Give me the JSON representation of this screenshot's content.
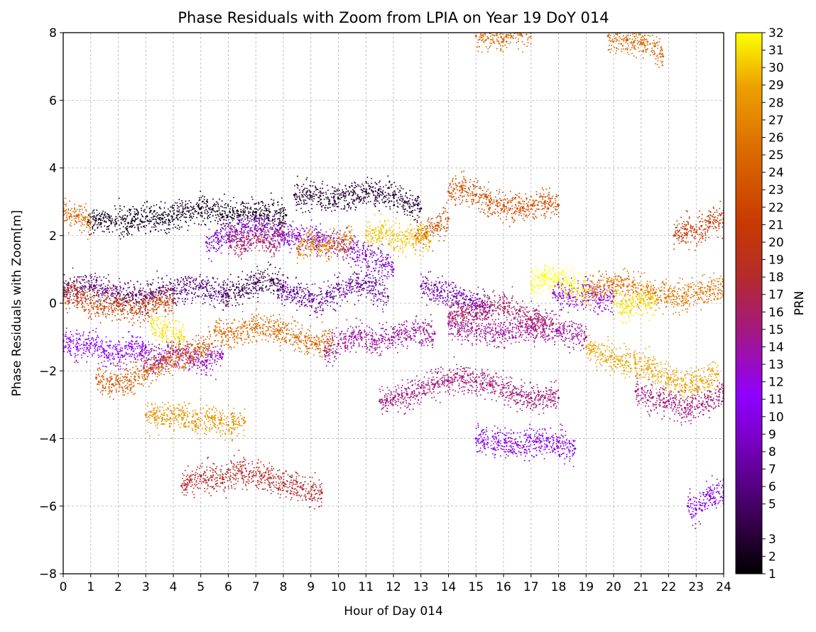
{
  "chart_data": {
    "type": "scatter",
    "title": "Phase Residuals with Zoom from LPIA on Year 19 DoY 014",
    "xlabel": "Hour of Day 014",
    "ylabel": "Phase Residuals with Zoom[m]",
    "xlim": [
      0,
      24
    ],
    "ylim": [
      -8,
      8
    ],
    "xticks": [
      "0",
      "1",
      "2",
      "3",
      "4",
      "5",
      "6",
      "7",
      "8",
      "9",
      "10",
      "11",
      "12",
      "13",
      "14",
      "15",
      "16",
      "17",
      "18",
      "19",
      "20",
      "21",
      "22",
      "23",
      "24"
    ],
    "yticks": [
      "8",
      "6",
      "4",
      "2",
      "0",
      "−2",
      "−4",
      "−6",
      "−8"
    ],
    "grid": true,
    "colorbar": {
      "label": "PRN",
      "colormap": "gnuplot",
      "ticks": [
        "1",
        "2",
        "3",
        "5",
        "6",
        "7",
        "8",
        "9",
        "10",
        "11",
        "12",
        "13",
        "14",
        "15",
        "16",
        "17",
        "18",
        "19",
        "20",
        "21",
        "22",
        "23",
        "24",
        "25",
        "26",
        "27",
        "28",
        "29",
        "30",
        "31",
        "32"
      ]
    },
    "series": [
      {
        "prn": 2,
        "x": [
          0.9,
          3.6,
          5.0,
          6.4,
          7.0,
          8.1
        ],
        "y": [
          2.4,
          2.5,
          2.8,
          2.6,
          2.7,
          2.6
        ]
      },
      {
        "prn": 3,
        "x": [
          8.4,
          10.0,
          11.0,
          12.0,
          13.0
        ],
        "y": [
          3.2,
          3.1,
          3.3,
          3.2,
          2.8
        ]
      },
      {
        "prn": 4,
        "x": [
          5.8,
          6.5,
          7.0,
          7.6,
          8.0
        ],
        "y": [
          0.2,
          0.4,
          0.6,
          0.7,
          0.5
        ]
      },
      {
        "prn": 6,
        "x": [
          0.0,
          1.0,
          2.0,
          3.0,
          4.0,
          5.0,
          6.0
        ],
        "y": [
          0.4,
          0.5,
          0.3,
          0.2,
          0.4,
          0.5,
          0.2
        ]
      },
      {
        "prn": 7,
        "x": [
          7.8,
          8.5,
          9.3,
          10.0,
          11.0,
          11.8
        ],
        "y": [
          0.4,
          0.3,
          0.0,
          0.4,
          0.6,
          0.2
        ]
      },
      {
        "prn": 8,
        "x": [
          13.0,
          13.6,
          14.2,
          14.8,
          15.5
        ],
        "y": [
          0.5,
          0.4,
          0.2,
          0.1,
          -0.1
        ]
      },
      {
        "prn": 9,
        "x": [
          5.2,
          6.0,
          7.0,
          8.0,
          9.0,
          10.0,
          11.0,
          12.0
        ],
        "y": [
          1.8,
          2.0,
          2.3,
          2.0,
          1.9,
          1.8,
          1.4,
          1.0
        ]
      },
      {
        "prn": 10,
        "x": [
          15.0,
          15.8,
          16.5,
          17.2,
          18.0,
          18.6
        ],
        "y": [
          -4.0,
          -4.1,
          -4.2,
          -4.1,
          -4.1,
          -4.3
        ]
      },
      {
        "prn": 10,
        "x": [
          22.7,
          23.0,
          23.5,
          24.0
        ],
        "y": [
          -6.0,
          -6.1,
          -5.7,
          -5.6
        ]
      },
      {
        "prn": 11,
        "x": [
          0.0,
          0.5,
          1.0,
          1.5,
          2.0,
          2.5,
          3.0
        ],
        "y": [
          -1.1,
          -1.3,
          -1.2,
          -1.4,
          -1.5,
          -1.3,
          -1.3
        ]
      },
      {
        "prn": 12,
        "x": [
          17.8,
          18.4,
          19.0,
          19.5,
          20.0
        ],
        "y": [
          0.3,
          0.2,
          0.3,
          0.1,
          0.2
        ]
      },
      {
        "prn": 13,
        "x": [
          2.8,
          3.4,
          4.0,
          4.6,
          5.2,
          5.8
        ],
        "y": [
          -1.5,
          -1.7,
          -1.4,
          -1.6,
          -1.7,
          -1.5
        ]
      },
      {
        "prn": 14,
        "x": [
          9.5,
          10.0,
          10.6,
          11.3,
          12.0,
          12.8,
          13.5
        ],
        "y": [
          -1.4,
          -1.2,
          -1.0,
          -1.1,
          -1.0,
          -0.8,
          -0.9
        ]
      },
      {
        "prn": 14,
        "x": [
          14.0,
          15.0,
          16.0,
          17.0,
          18.0,
          19.0
        ],
        "y": [
          -0.6,
          -0.8,
          -0.9,
          -0.7,
          -0.8,
          -1.0
        ]
      },
      {
        "prn": 15,
        "x": [
          11.5,
          12.0,
          12.5,
          13.0,
          13.5,
          14.0,
          14.5,
          15.0,
          15.5,
          16.0,
          16.5,
          17.0,
          17.5,
          18.0
        ],
        "y": [
          -2.9,
          -2.8,
          -2.7,
          -2.5,
          -2.4,
          -2.3,
          -2.2,
          -2.3,
          -2.4,
          -2.5,
          -2.7,
          -2.8,
          -2.8,
          -2.8
        ]
      },
      {
        "prn": 15,
        "x": [
          20.8,
          21.4,
          22.0,
          22.6,
          23.2,
          24.0
        ],
        "y": [
          -2.6,
          -2.8,
          -2.9,
          -3.1,
          -3.0,
          -2.6
        ]
      },
      {
        "prn": 16,
        "x": [
          6.0,
          6.5,
          7.0,
          7.5,
          8.0
        ],
        "y": [
          1.9,
          1.7,
          2.0,
          1.8,
          2.1
        ]
      },
      {
        "prn": 16,
        "x": [
          14.0,
          15.0,
          16.0,
          17.0,
          17.8
        ],
        "y": [
          -0.4,
          -0.3,
          0.0,
          -0.5,
          -0.6
        ]
      },
      {
        "prn": 18,
        "x": [
          4.3,
          5.0,
          5.8,
          6.5,
          7.2,
          8.0,
          8.7,
          9.4
        ],
        "y": [
          -5.4,
          -5.1,
          -5.2,
          -5.0,
          -5.1,
          -5.3,
          -5.5,
          -5.6
        ]
      },
      {
        "prn": 21,
        "x": [
          22.2,
          22.6,
          23.0,
          23.5,
          24.0
        ],
        "y": [
          2.0,
          2.2,
          2.1,
          2.4,
          2.5
        ]
      },
      {
        "prn": 22,
        "x": [
          0.0,
          0.5,
          1.0,
          1.5,
          2.0,
          2.5,
          3.0,
          3.5,
          4.0
        ],
        "y": [
          0.3,
          0.2,
          0.0,
          -0.1,
          0.0,
          -0.2,
          -0.1,
          0.1,
          0.0
        ]
      },
      {
        "prn": 23,
        "x": [
          14.0,
          14.5,
          15.0,
          15.5,
          16.0,
          16.5,
          17.0,
          17.5,
          18.0
        ],
        "y": [
          3.3,
          3.4,
          3.2,
          3.0,
          2.9,
          2.8,
          2.9,
          3.0,
          2.9
        ]
      },
      {
        "prn": 23,
        "x": [
          12.8,
          13.2,
          13.6,
          14.0
        ],
        "y": [
          2.0,
          2.1,
          2.3,
          2.5
        ]
      },
      {
        "prn": 24,
        "x": [
          1.2,
          1.8,
          2.4,
          3.0,
          3.6,
          4.2,
          4.8,
          5.4
        ],
        "y": [
          -2.2,
          -2.4,
          -2.3,
          -2.0,
          -1.8,
          -1.6,
          -1.4,
          -1.2
        ]
      },
      {
        "prn": 25,
        "x": [
          5.5,
          6.2,
          7.0,
          7.8,
          8.5,
          9.2,
          9.8
        ],
        "y": [
          -0.8,
          -0.9,
          -0.7,
          -0.8,
          -1.0,
          -1.2,
          -1.1
        ]
      },
      {
        "prn": 25,
        "x": [
          0.0,
          0.5,
          1.0
        ],
        "y": [
          2.7,
          2.6,
          2.4
        ]
      },
      {
        "prn": 25,
        "x": [
          15.0,
          15.5,
          16.0,
          16.5,
          17.0
        ],
        "y": [
          7.9,
          8.0,
          7.8,
          8.0,
          8.0
        ]
      },
      {
        "prn": 25,
        "x": [
          19.8,
          20.5,
          21.0,
          21.5,
          21.8
        ],
        "y": [
          7.9,
          7.8,
          7.7,
          7.6,
          7.3
        ]
      },
      {
        "prn": 26,
        "x": [
          19.0,
          19.5,
          20.0,
          20.5,
          21.0,
          21.5,
          22.0,
          22.5,
          23.0,
          23.5,
          24.0
        ],
        "y": [
          0.3,
          0.5,
          0.6,
          0.5,
          0.4,
          0.3,
          0.2,
          0.2,
          0.3,
          0.4,
          0.5
        ]
      },
      {
        "prn": 27,
        "x": [
          8.5,
          9.0,
          9.5,
          10.0,
          10.5
        ],
        "y": [
          1.6,
          1.8,
          1.7,
          1.8,
          1.9
        ]
      },
      {
        "prn": 28,
        "x": [
          3.0,
          3.6,
          4.2,
          4.8,
          5.4,
          6.0,
          6.6
        ],
        "y": [
          -3.3,
          -3.4,
          -3.3,
          -3.5,
          -3.4,
          -3.6,
          -3.5
        ]
      },
      {
        "prn": 29,
        "x": [
          19.0,
          19.6,
          20.2,
          20.8,
          21.4,
          22.0,
          22.6,
          23.2,
          23.8
        ],
        "y": [
          -1.3,
          -1.5,
          -1.7,
          -1.8,
          -2.0,
          -2.2,
          -2.4,
          -2.3,
          -2.1
        ]
      },
      {
        "prn": 30,
        "x": [
          11.0,
          11.5,
          12.0,
          12.5,
          13.0,
          13.3
        ],
        "y": [
          2.0,
          2.1,
          2.0,
          1.9,
          2.0,
          1.8
        ]
      },
      {
        "prn": 31,
        "x": [
          3.2,
          3.6,
          4.0,
          4.4
        ],
        "y": [
          -0.6,
          -0.8,
          -0.9,
          -1.0
        ]
      },
      {
        "prn": 31,
        "x": [
          20.0,
          20.5,
          21.0,
          21.5
        ],
        "y": [
          0.0,
          -0.1,
          0.1,
          0.0
        ]
      },
      {
        "prn": 32,
        "x": [
          17.0,
          17.5,
          18.0,
          18.5,
          19.0
        ],
        "y": [
          0.6,
          0.8,
          0.7,
          0.5,
          0.4
        ]
      }
    ]
  }
}
